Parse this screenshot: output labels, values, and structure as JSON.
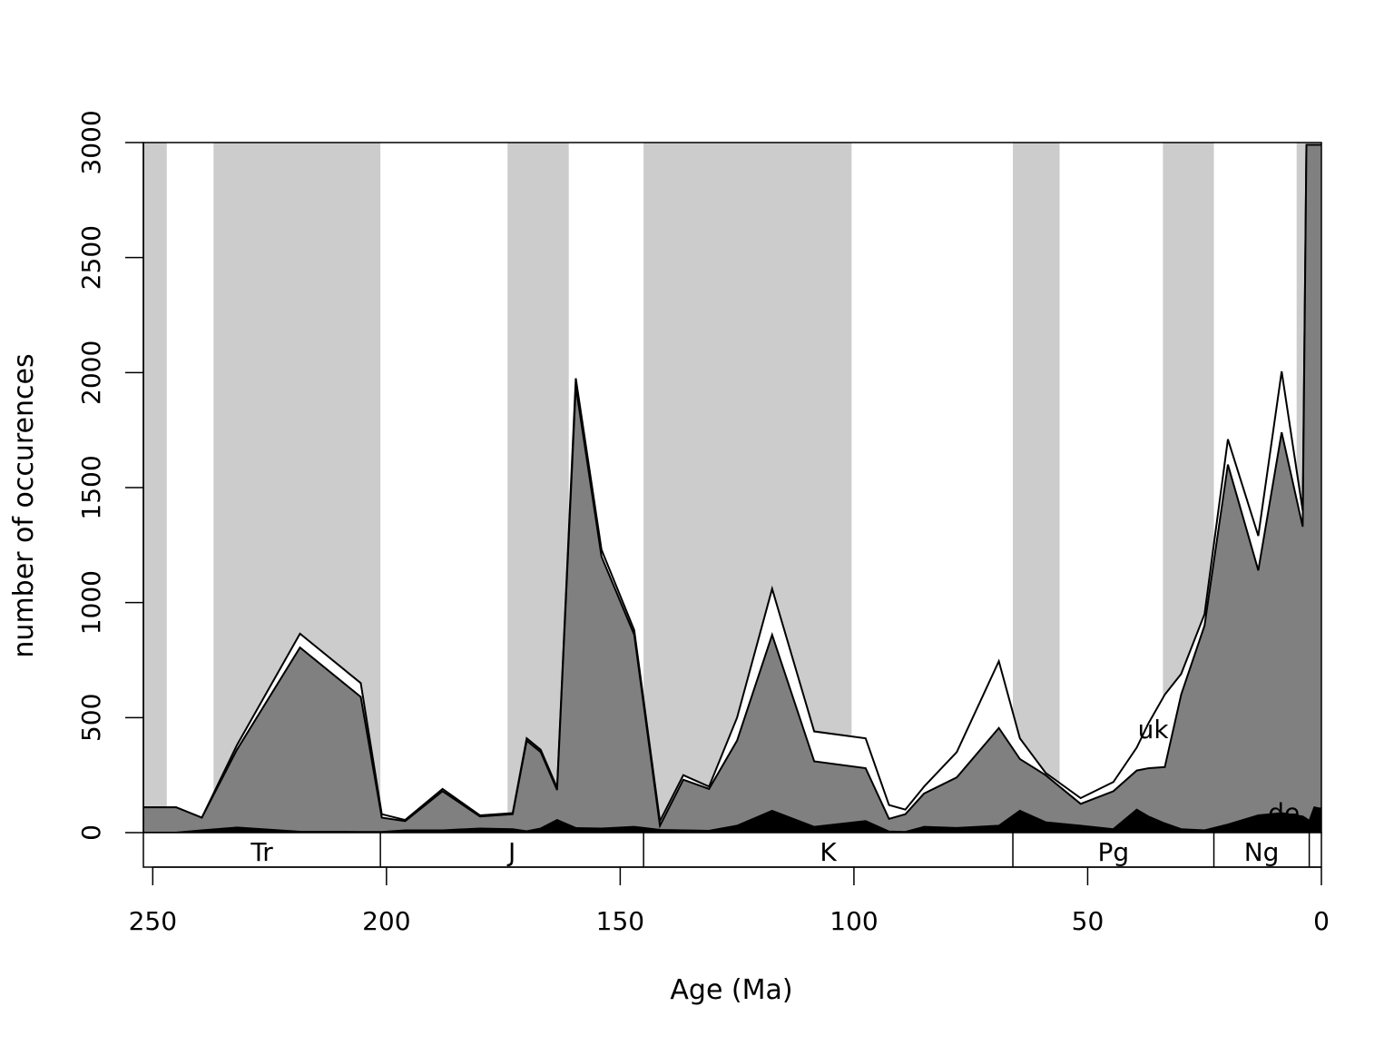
{
  "chart_data": {
    "type": "area",
    "title": "",
    "xlabel": "Age (Ma)",
    "ylabel": "number of occurences",
    "xlim": [
      252,
      0
    ],
    "ylim": [
      0,
      3000
    ],
    "x_ticks": [
      250,
      200,
      150,
      100,
      50,
      0
    ],
    "y_ticks": [
      0,
      500,
      1000,
      1500,
      2000,
      2500,
      3000
    ],
    "grid": false,
    "colors": {
      "band": "#cccccc",
      "area_main": "#808080",
      "area_dark": "#000000",
      "area_white": "#ffffff",
      "line": "#000000"
    },
    "background_bands": [
      [
        252,
        247
      ],
      [
        237,
        201.3
      ],
      [
        174.1,
        161
      ],
      [
        145,
        100.5
      ],
      [
        66,
        56
      ],
      [
        33.9,
        23
      ],
      [
        5.3,
        0
      ]
    ],
    "periods": [
      {
        "label": "Tr",
        "start": 252,
        "end": 201.3
      },
      {
        "label": "J",
        "start": 201.3,
        "end": 145
      },
      {
        "label": "K",
        "start": 145,
        "end": 66
      },
      {
        "label": "Pg",
        "start": 66,
        "end": 23
      },
      {
        "label": "Ng",
        "start": 23,
        "end": 2.6
      },
      {
        "label": "",
        "start": 2.6,
        "end": 0
      }
    ],
    "x": [
      252,
      245,
      239.5,
      232,
      218.5,
      205.5,
      201,
      196,
      188,
      180,
      173,
      170,
      167,
      163.5,
      159.5,
      154,
      147,
      141.5,
      136.5,
      131,
      125,
      117.5,
      108.5,
      97.5,
      92.5,
      89,
      85,
      78,
      69,
      64.5,
      59,
      51.5,
      44.5,
      39.5,
      37,
      33.5,
      30,
      25,
      20,
      13.5,
      8.5,
      4,
      3.2,
      2.6,
      1.5,
      0.5,
      0
    ],
    "series": [
      {
        "name": "",
        "values": [
          0,
          0,
          10,
          22,
          4,
          3,
          3,
          10,
          10,
          18,
          15,
          6,
          18,
          55,
          20,
          18,
          25,
          12,
          10,
          8,
          30,
          95,
          25,
          50,
          5,
          3,
          25,
          20,
          30,
          95,
          45,
          30,
          15,
          100,
          70,
          40,
          15,
          10,
          35,
          75,
          85,
          70,
          60,
          50,
          110,
          105,
          105
        ]
      },
      {
        "name": "",
        "values": [
          110,
          110,
          65,
          360,
          805,
          590,
          65,
          50,
          180,
          70,
          80,
          400,
          350,
          185,
          1940,
          1200,
          860,
          30,
          230,
          190,
          400,
          860,
          310,
          280,
          60,
          80,
          170,
          240,
          455,
          320,
          250,
          125,
          180,
          270,
          280,
          285,
          600,
          900,
          1600,
          1140,
          1740,
          1330,
          2990,
          2990,
          2990,
          2990,
          2990
        ]
      },
      {
        "name": "uk",
        "values": [
          110,
          110,
          65,
          380,
          865,
          650,
          80,
          55,
          190,
          75,
          85,
          410,
          360,
          195,
          1975,
          1230,
          880,
          50,
          250,
          200,
          500,
          1060,
          440,
          410,
          120,
          100,
          200,
          350,
          745,
          410,
          260,
          150,
          220,
          370,
          475,
          600,
          690,
          950,
          1710,
          1290,
          2005,
          1400,
          2990,
          2990,
          2990,
          2990,
          2990
        ]
      }
    ],
    "annotations": [
      {
        "text": "uk",
        "x": 36,
        "y": 410
      },
      {
        "text": "de",
        "x": 8,
        "y": 50
      }
    ]
  }
}
